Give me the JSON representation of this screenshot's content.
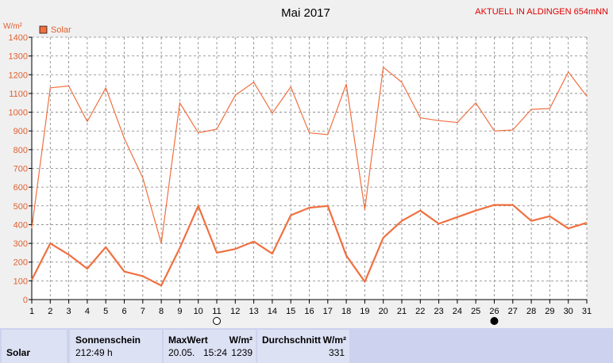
{
  "header": {
    "title": "Mai 2017",
    "subtitle": "AKTUELL IN ALDINGEN 654mNN",
    "unit": "W/m²"
  },
  "chart_data": {
    "type": "line",
    "title": "Mai 2017",
    "ylabel": "W/m²",
    "ylim": [
      0,
      1400
    ],
    "yticks": [
      0,
      100,
      200,
      300,
      400,
      500,
      600,
      700,
      800,
      900,
      1000,
      1100,
      1200,
      1300,
      1400
    ],
    "x": [
      1,
      2,
      3,
      4,
      5,
      6,
      7,
      8,
      9,
      10,
      11,
      12,
      13,
      14,
      15,
      16,
      17,
      18,
      19,
      20,
      21,
      22,
      23,
      24,
      25,
      26,
      27,
      28,
      29,
      30,
      31
    ],
    "xlim": [
      1,
      31
    ],
    "grid": true,
    "legend": "top-left",
    "legend_label": "Solar",
    "series": [
      {
        "role": "max",
        "values": [
          380,
          1130,
          1140,
          950,
          1130,
          860,
          650,
          300,
          1050,
          890,
          910,
          1090,
          1160,
          995,
          1135,
          890,
          880,
          1150,
          480,
          1240,
          1160,
          970,
          955,
          945,
          1050,
          900,
          905,
          1015,
          1020,
          1215,
          1085
        ]
      },
      {
        "role": "mean",
        "values": [
          105,
          300,
          240,
          165,
          280,
          150,
          125,
          75,
          275,
          500,
          250,
          270,
          310,
          245,
          450,
          490,
          500,
          235,
          95,
          330,
          420,
          475,
          405,
          440,
          475,
          505,
          505,
          420,
          445,
          380,
          410
        ]
      }
    ],
    "moon_markers": [
      {
        "day": 11,
        "phase": "full-moon"
      },
      {
        "day": 26,
        "phase": "new-moon"
      }
    ]
  },
  "colors": {
    "line": "#f07040",
    "grid": "#808080",
    "axis_text": "#e06030",
    "legend_box": "#f07040"
  },
  "stats": {
    "row_label": "Solar",
    "sonnenschein": {
      "header": "Sonnenschein",
      "value": "212:49 h"
    },
    "maxwert": {
      "header": "MaxWert",
      "unit": "W/m²",
      "date": "20.05.",
      "time": "15:24",
      "value": "1239"
    },
    "durchschnitt": {
      "header": "Durchschnitt",
      "unit": "W/m²",
      "value": "331"
    }
  }
}
